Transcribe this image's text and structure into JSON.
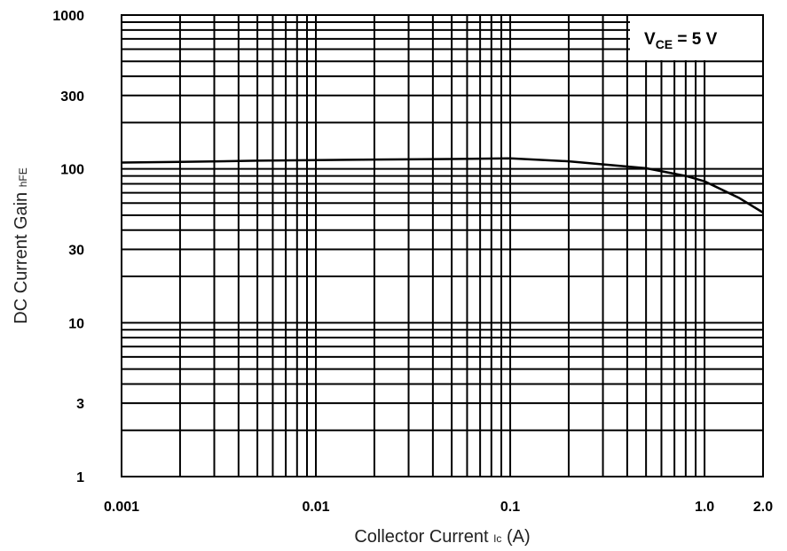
{
  "chart_data": {
    "type": "line",
    "xlabel": "Collector Current",
    "xlabel_symbol": "Ic",
    "xlabel_unit": "(A)",
    "ylabel": "DC Current Gain",
    "ylabel_symbol": "hFE",
    "x_scale": "log",
    "y_scale": "log",
    "xlim": [
      0.001,
      2.0
    ],
    "ylim": [
      1,
      1000
    ],
    "grid": true,
    "xticks": [
      {
        "value": 0.001,
        "label": "0.001"
      },
      {
        "value": 0.01,
        "label": "0.01"
      },
      {
        "value": 0.1,
        "label": "0.1"
      },
      {
        "value": 1.0,
        "label": "1.0"
      },
      {
        "value": 2.0,
        "label": "2.0"
      }
    ],
    "yticks": [
      {
        "value": 1,
        "label": "1"
      },
      {
        "value": 3,
        "label": "3"
      },
      {
        "value": 10,
        "label": "10"
      },
      {
        "value": 30,
        "label": "30"
      },
      {
        "value": 100,
        "label": "100"
      },
      {
        "value": 300,
        "label": "300"
      },
      {
        "value": 1000,
        "label": "1000"
      }
    ],
    "annotation": {
      "prefix": "V",
      "subscript": "CE",
      "suffix": " = 5  V",
      "placement": "top-right"
    },
    "series": [
      {
        "x": [
          0.001,
          0.002,
          0.005,
          0.01,
          0.02,
          0.05,
          0.1,
          0.2,
          0.5,
          0.8,
          1.0,
          1.5,
          2.0
        ],
        "y": [
          110,
          111,
          113,
          114,
          115,
          116,
          117,
          112,
          101,
          90,
          83,
          65,
          52
        ]
      }
    ]
  }
}
